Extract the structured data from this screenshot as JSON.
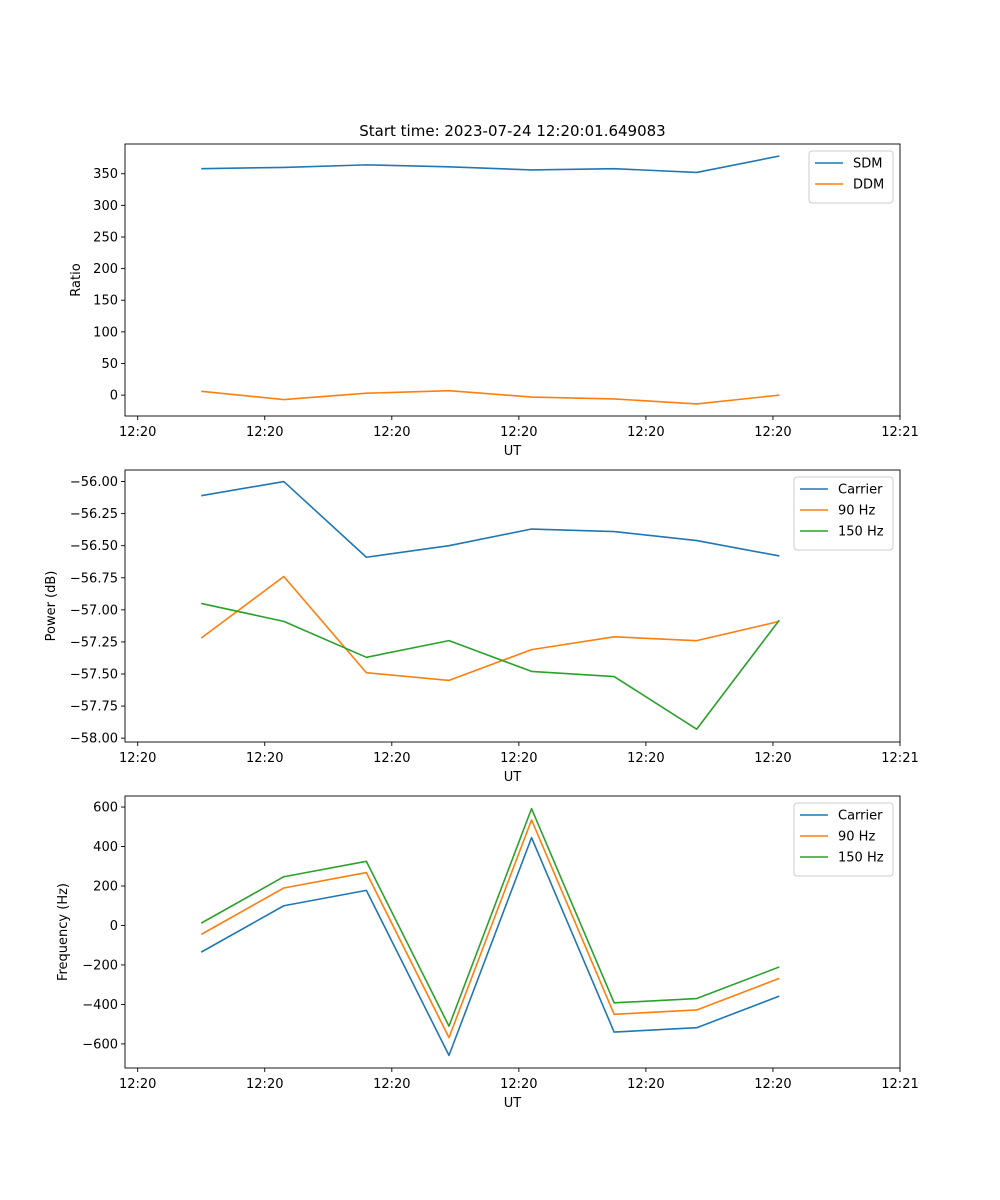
{
  "figure": {
    "title": "Start time: 2023-07-24 12:20:01.649083"
  },
  "chart_data": [
    {
      "type": "line",
      "title": "Start time: 2023-07-24 12:20:01.649083",
      "xlabel": "UT",
      "ylabel": "Ratio",
      "x": [
        0.5,
        1.15,
        1.8,
        2.45,
        3.1,
        3.75,
        4.4,
        5.05
      ],
      "xlim": [
        -0.1,
        6.0
      ],
      "xticks": [
        0,
        1,
        2,
        3,
        4,
        5,
        6
      ],
      "xtick_labels": [
        "12:20",
        "12:20",
        "12:20",
        "12:20",
        "12:20",
        "12:20",
        "12:21"
      ],
      "ylim": [
        -33,
        397
      ],
      "yticks": [
        0,
        50,
        100,
        150,
        200,
        250,
        300,
        350
      ],
      "ytick_labels": [
        "0",
        "50",
        "100",
        "150",
        "200",
        "250",
        "300",
        "350"
      ],
      "legend_position": "top-right",
      "series": [
        {
          "name": "SDM",
          "color": "#1f77b4",
          "values": [
            358,
            360,
            364,
            361,
            356,
            358,
            352,
            378
          ]
        },
        {
          "name": "DDM",
          "color": "#ff7f0e",
          "values": [
            6,
            -7,
            3,
            7,
            -3,
            -6,
            -14,
            0
          ]
        }
      ]
    },
    {
      "type": "line",
      "xlabel": "UT",
      "ylabel": "Power (dB)",
      "x": [
        0.5,
        1.15,
        1.8,
        2.45,
        3.1,
        3.75,
        4.4,
        5.05
      ],
      "xlim": [
        -0.1,
        6.0
      ],
      "xticks": [
        0,
        1,
        2,
        3,
        4,
        5,
        6
      ],
      "xtick_labels": [
        "12:20",
        "12:20",
        "12:20",
        "12:20",
        "12:20",
        "12:20",
        "12:21"
      ],
      "ylim": [
        -58.03,
        -55.91
      ],
      "yticks": [
        -58.0,
        -57.75,
        -57.5,
        -57.25,
        -57.0,
        -56.75,
        -56.5,
        -56.25,
        -56.0
      ],
      "ytick_labels": [
        "−58.00",
        "−57.75",
        "−57.50",
        "−57.25",
        "−57.00",
        "−56.75",
        "−56.50",
        "−56.25",
        "−56.00"
      ],
      "legend_position": "top-right",
      "series": [
        {
          "name": "Carrier",
          "color": "#1f77b4",
          "values": [
            -56.11,
            -56.0,
            -56.59,
            -56.5,
            -56.37,
            -56.39,
            -56.46,
            -56.58
          ]
        },
        {
          "name": "90 Hz",
          "color": "#ff7f0e",
          "values": [
            -57.22,
            -56.74,
            -57.49,
            -57.55,
            -57.31,
            -57.21,
            -57.24,
            -57.09
          ]
        },
        {
          "name": "150 Hz",
          "color": "#2ca02c",
          "values": [
            -56.95,
            -57.09,
            -57.37,
            -57.24,
            -57.48,
            -57.52,
            -57.93,
            -57.08
          ]
        }
      ]
    },
    {
      "type": "line",
      "xlabel": "UT",
      "ylabel": "Frequency (Hz)",
      "x": [
        0.5,
        1.15,
        1.8,
        2.45,
        3.1,
        3.75,
        4.4,
        5.05
      ],
      "xlim": [
        -0.1,
        6.0
      ],
      "xticks": [
        0,
        1,
        2,
        3,
        4,
        5,
        6
      ],
      "xtick_labels": [
        "12:20",
        "12:20",
        "12:20",
        "12:20",
        "12:20",
        "12:20",
        "12:21"
      ],
      "ylim": [
        -722,
        656
      ],
      "yticks": [
        -600,
        -400,
        -200,
        0,
        200,
        400,
        600
      ],
      "ytick_labels": [
        "−600",
        "−400",
        "−200",
        "0",
        "200",
        "400",
        "600"
      ],
      "legend_position": "top-right",
      "series": [
        {
          "name": "Carrier",
          "color": "#1f77b4",
          "values": [
            -135,
            100,
            178,
            -658,
            445,
            -540,
            -518,
            -358
          ]
        },
        {
          "name": "90 Hz",
          "color": "#ff7f0e",
          "values": [
            -45,
            190,
            268,
            -568,
            535,
            -450,
            -428,
            -268
          ]
        },
        {
          "name": "150 Hz",
          "color": "#2ca02c",
          "values": [
            12,
            247,
            325,
            -510,
            592,
            -392,
            -370,
            -210
          ]
        }
      ]
    }
  ]
}
